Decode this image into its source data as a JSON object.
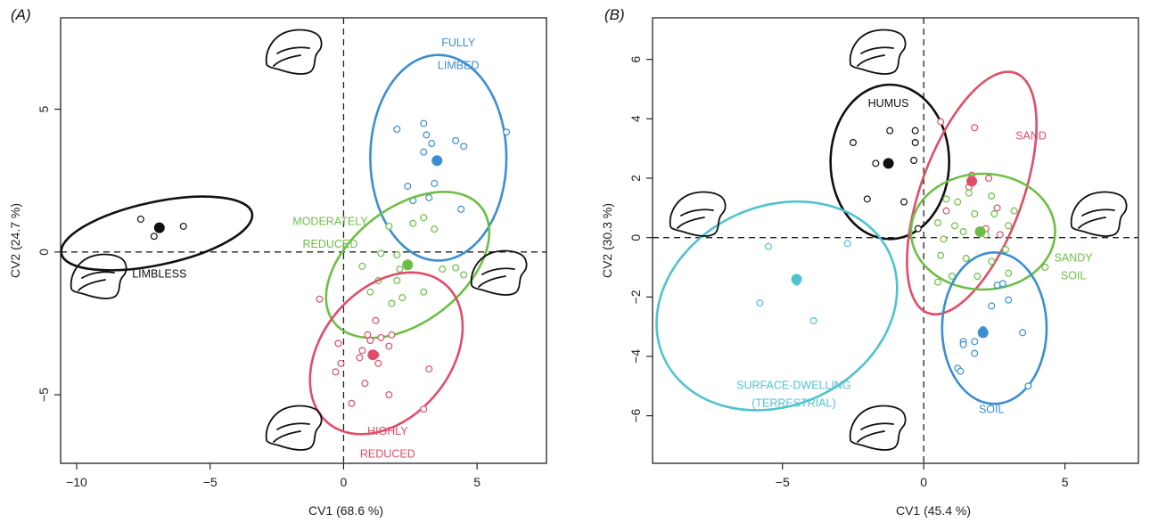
{
  "colors": {
    "black": "#111111",
    "blue": "#3b8fd1",
    "green": "#6cbf45",
    "red": "#e04d68",
    "cyan": "#4fc3d1"
  },
  "chart_data": [
    {
      "type": "scatter",
      "panel_label": "(A)",
      "xlabel": "CV1 (68.6 %)",
      "ylabel": "CV2 (24.7 %)",
      "xlim": [
        -10.6,
        7.6
      ],
      "ylim": [
        -7.4,
        8.2
      ],
      "xticks": [
        -10,
        -5,
        0,
        5
      ],
      "yticks": [
        -5,
        0,
        5
      ],
      "reference_lines": {
        "x": 0,
        "y": 0
      },
      "groups": [
        {
          "name": [
            "LIMBLESS"
          ],
          "color": "black",
          "centroid": [
            -6.9,
            0.85
          ],
          "ellipse": {
            "cx": -7.0,
            "cy": 0.65,
            "rx": 3.65,
            "ry": 1.1,
            "angle_deg": -12
          },
          "points": [
            [
              -7.6,
              1.15
            ],
            [
              -7.1,
              0.55
            ],
            [
              -6.0,
              0.9
            ]
          ]
        },
        {
          "name": [
            "FULLY",
            "LIMBED"
          ],
          "color": "blue",
          "centroid": [
            3.5,
            3.2
          ],
          "ellipse": {
            "cx": 3.55,
            "cy": 3.3,
            "rx": 2.55,
            "ry": 3.6,
            "angle_deg": 0
          },
          "points": [
            [
              2.0,
              4.3
            ],
            [
              3.0,
              4.5
            ],
            [
              3.1,
              4.1
            ],
            [
              4.2,
              3.9
            ],
            [
              4.5,
              3.7
            ],
            [
              3.3,
              3.8
            ],
            [
              6.1,
              4.2
            ],
            [
              3.0,
              3.5
            ],
            [
              2.4,
              2.3
            ],
            [
              3.4,
              2.4
            ],
            [
              3.2,
              1.9
            ],
            [
              2.6,
              1.8
            ],
            [
              4.4,
              1.5
            ]
          ]
        },
        {
          "name": [
            "MODERATELY",
            "REDUCED"
          ],
          "color": "green",
          "centroid": [
            2.4,
            -0.45
          ],
          "ellipse": {
            "cx": 2.4,
            "cy": -0.45,
            "rx": 3.5,
            "ry": 2.0,
            "angle_deg": -38
          },
          "points": [
            [
              1.7,
              0.9
            ],
            [
              3.0,
              1.2
            ],
            [
              3.4,
              0.8
            ],
            [
              2.6,
              1.0
            ],
            [
              1.4,
              -0.05
            ],
            [
              2.0,
              -0.1
            ],
            [
              0.7,
              -0.5
            ],
            [
              2.1,
              -0.6
            ],
            [
              3.7,
              -0.6
            ],
            [
              4.2,
              -0.55
            ],
            [
              1.3,
              -1.0
            ],
            [
              2.0,
              -1.0
            ],
            [
              4.5,
              -0.8
            ],
            [
              1.0,
              -1.4
            ],
            [
              3.0,
              -1.4
            ],
            [
              1.8,
              -1.8
            ],
            [
              2.2,
              -1.6
            ]
          ]
        },
        {
          "name": [
            "HIGHLY",
            "REDUCED"
          ],
          "color": "red",
          "centroid": [
            1.1,
            -3.6
          ],
          "ellipse": {
            "cx": 1.6,
            "cy": -3.55,
            "rx": 3.4,
            "ry": 2.25,
            "angle_deg": -50
          },
          "points": [
            [
              -0.9,
              -1.65
            ],
            [
              1.2,
              -2.4
            ],
            [
              1.4,
              -3.0
            ],
            [
              1.8,
              -2.9
            ],
            [
              -0.2,
              -3.2
            ],
            [
              0.9,
              -2.9
            ],
            [
              1.7,
              -3.3
            ],
            [
              1.0,
              -3.1
            ],
            [
              0.7,
              -3.45
            ],
            [
              1.2,
              -3.6
            ],
            [
              -0.1,
              -3.9
            ],
            [
              0.6,
              -3.7
            ],
            [
              1.3,
              -3.9
            ],
            [
              3.2,
              -4.1
            ],
            [
              -0.3,
              -4.2
            ],
            [
              0.8,
              -4.6
            ],
            [
              1.7,
              -5.0
            ],
            [
              0.3,
              -5.3
            ],
            [
              3.0,
              -5.5
            ]
          ]
        }
      ]
    },
    {
      "type": "scatter",
      "panel_label": "(B)",
      "xlabel": "CV1 (45.4 %)",
      "ylabel": "CV2 (30.3 %)",
      "xlim": [
        -9.6,
        7.6
      ],
      "ylim": [
        -7.6,
        7.4
      ],
      "xticks": [
        -5,
        0,
        5
      ],
      "yticks": [
        -6,
        -4,
        -2,
        0,
        2,
        4,
        6
      ],
      "reference_lines": {
        "x": 0,
        "y": 0
      },
      "groups": [
        {
          "name": [
            "HUMUS"
          ],
          "color": "black",
          "centroid": [
            -1.25,
            2.5
          ],
          "ellipse": {
            "cx": -1.2,
            "cy": 2.55,
            "rx": 2.1,
            "ry": 2.6,
            "angle_deg": 0
          },
          "points": [
            [
              -2.5,
              3.2
            ],
            [
              -1.2,
              3.6
            ],
            [
              -0.3,
              3.6
            ],
            [
              -0.3,
              3.2
            ],
            [
              -0.35,
              2.6
            ],
            [
              -1.7,
              2.5
            ],
            [
              -2.0,
              1.3
            ],
            [
              -0.7,
              1.2
            ],
            [
              -0.2,
              0.3
            ]
          ]
        },
        {
          "name": [
            "SAND"
          ],
          "color": "red",
          "centroid": [
            1.7,
            1.9
          ],
          "ellipse": {
            "cx": 1.7,
            "cy": 1.5,
            "rx": 1.8,
            "ry": 4.3,
            "angle_deg": 20
          },
          "points": [
            [
              0.6,
              3.9
            ],
            [
              1.8,
              3.7
            ],
            [
              1.6,
              1.7
            ],
            [
              2.3,
              2.0
            ],
            [
              1.7,
              2.1
            ],
            [
              2.6,
              1.0
            ],
            [
              0.8,
              0.9
            ],
            [
              2.2,
              0.3
            ],
            [
              2.7,
              0.1
            ]
          ]
        },
        {
          "name": [
            "SANDY",
            "SOIL"
          ],
          "color": "green",
          "centroid": [
            2.0,
            0.2
          ],
          "ellipse": {
            "cx": 2.1,
            "cy": 0.2,
            "rx": 2.55,
            "ry": 1.95,
            "angle_deg": 0
          },
          "points": [
            [
              1.6,
              1.5
            ],
            [
              2.4,
              1.4
            ],
            [
              0.8,
              1.3
            ],
            [
              1.2,
              1.2
            ],
            [
              3.2,
              0.9
            ],
            [
              1.8,
              0.8
            ],
            [
              2.5,
              0.8
            ],
            [
              0.5,
              0.5
            ],
            [
              1.1,
              0.4
            ],
            [
              3.0,
              0.4
            ],
            [
              2.2,
              0.1
            ],
            [
              1.4,
              0.2
            ],
            [
              0.7,
              -0.05
            ],
            [
              2.9,
              -0.4
            ],
            [
              0.6,
              -0.6
            ],
            [
              1.5,
              -0.7
            ],
            [
              2.4,
              -0.8
            ],
            [
              1.0,
              -1.3
            ],
            [
              1.9,
              -1.3
            ],
            [
              4.3,
              -1.0
            ],
            [
              3.0,
              -1.2
            ],
            [
              0.5,
              -1.5
            ]
          ]
        },
        {
          "name": [
            "SOIL"
          ],
          "color": "blue",
          "centroid": [
            2.1,
            -3.2
          ],
          "ellipse": {
            "cx": 2.5,
            "cy": -3.05,
            "rx": 1.85,
            "ry": 2.55,
            "angle_deg": 0
          },
          "points": [
            [
              2.6,
              -1.6
            ],
            [
              2.8,
              -1.55
            ],
            [
              3.0,
              -2.1
            ],
            [
              2.4,
              -2.3
            ],
            [
              2.1,
              -3.1
            ],
            [
              3.5,
              -3.2
            ],
            [
              1.4,
              -3.5
            ],
            [
              1.8,
              -3.5
            ],
            [
              1.4,
              -3.6
            ],
            [
              1.8,
              -3.9
            ],
            [
              1.2,
              -4.4
            ],
            [
              1.3,
              -4.5
            ],
            [
              3.7,
              -5.0
            ]
          ]
        },
        {
          "name": [
            "SURFACE-DWELLING",
            "(TERRESTRIAL)"
          ],
          "color": "cyan",
          "centroid": [
            -4.5,
            -1.4
          ],
          "ellipse": {
            "cx": -5.2,
            "cy": -2.3,
            "rx": 4.4,
            "ry": 3.35,
            "angle_deg": -25
          },
          "points": [
            [
              -5.5,
              -0.3
            ],
            [
              -2.7,
              -0.2
            ],
            [
              -4.5,
              -1.5
            ],
            [
              -5.8,
              -2.2
            ],
            [
              -3.9,
              -2.8
            ]
          ]
        }
      ]
    }
  ]
}
